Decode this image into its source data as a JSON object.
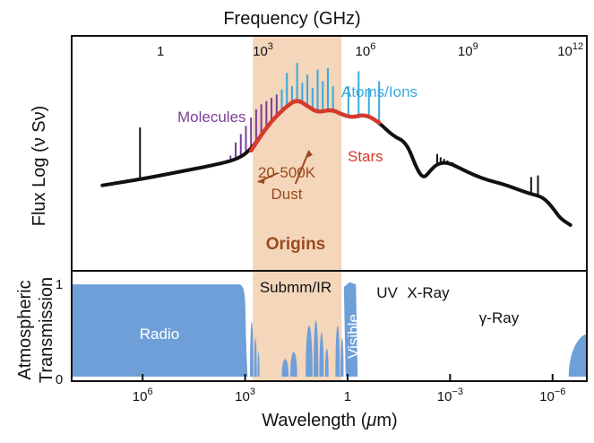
{
  "chart_data": [
    {
      "type": "line",
      "panel": "spectral energy distribution (flux)",
      "x_scale": "log",
      "top_axis": {
        "title": "Frequency (GHz)",
        "ticks": [
          {
            "value": 1,
            "base": "",
            "exp": "1"
          },
          {
            "value": 1000,
            "base": "10",
            "exp": "3"
          },
          {
            "value": 1000000,
            "base": "10",
            "exp": "6"
          },
          {
            "value": 1000000000,
            "base": "10",
            "exp": "9"
          },
          {
            "value": 1000000000000,
            "base": "10",
            "exp": "12"
          }
        ],
        "range_ghz": [
          0.0025,
          3000000000000.0
        ]
      },
      "ylabel": "Flux Log (ν Sν)",
      "yticks": [],
      "series": [
        {
          "color": "#111111",
          "x_log10_ghz": [
            -1.7,
            -0.5,
            0.5,
            1.5,
            2.3,
            2.7,
            3.0,
            3.3,
            3.7,
            4.0,
            4.3,
            4.6,
            5.0,
            5.3,
            5.6,
            6.0,
            6.4,
            6.8,
            7.2,
            7.5,
            7.7,
            7.9,
            8.1,
            8.4,
            8.8,
            9.2,
            9.6,
            10.0,
            10.4,
            10.8,
            11.2,
            11.5,
            11.7,
            12.0
          ],
          "y_log_flux": [
            1.0,
            1.4,
            1.8,
            2.2,
            2.6,
            3.3,
            4.2,
            5.0,
            5.8,
            6.2,
            5.8,
            5.4,
            5.6,
            5.3,
            5.1,
            5.3,
            4.8,
            4.0,
            3.6,
            2.0,
            1.4,
            1.9,
            2.3,
            2.4,
            2.0,
            1.6,
            1.3,
            1.1,
            0.8,
            0.5,
            0.3,
            -0.4,
            -1.0,
            -1.4
          ]
        },
        {
          "name": "Dust",
          "color": "#d63a2b",
          "x_log10_ghz": [
            2.65,
            3.0,
            3.3,
            3.7,
            4.0,
            4.3,
            4.6,
            5.0,
            5.3,
            5.6,
            6.0,
            6.4
          ],
          "y_log_flux": [
            3.1,
            4.2,
            5.0,
            5.8,
            6.2,
            5.8,
            5.4,
            5.6,
            5.3,
            5.1,
            5.3,
            4.8
          ]
        }
      ],
      "line_spectra": [
        {
          "name": "Molecules",
          "color": "#7b3f98",
          "x_log10_ghz": [
            2.05,
            2.2,
            2.35,
            2.5,
            2.65,
            2.8,
            2.95,
            3.1,
            3.25,
            3.4,
            3.55
          ],
          "y_top": [
            2.8,
            3.6,
            4.1,
            4.6,
            5.1,
            5.6,
            5.9,
            6.1,
            6.3,
            6.5,
            6.4
          ]
        },
        {
          "name": "Atoms/Ions",
          "color": "#37a9e1",
          "x_log10_ghz": [
            3.55,
            3.7,
            3.85,
            4.0,
            4.15,
            4.3,
            4.45,
            4.6,
            4.75,
            4.9,
            5.05,
            5.5,
            5.8,
            6.1,
            6.4
          ],
          "y_top": [
            6.8,
            7.8,
            7.0,
            8.4,
            7.2,
            7.7,
            6.9,
            8.0,
            7.3,
            8.1,
            7.0,
            7.0,
            7.9,
            6.9,
            7.3
          ]
        },
        {
          "color": "#111111",
          "x_log10_ghz": [
            -0.6,
            8.1,
            8.2,
            8.3,
            8.4,
            8.55,
            10.85,
            11.05
          ],
          "y_top": [
            4.5,
            2.9,
            2.7,
            2.6,
            2.5,
            2.4,
            1.5,
            1.6
          ]
        }
      ],
      "regions": [
        {
          "label": "Origins",
          "from_log10_ghz": 2.7,
          "to_log10_ghz": 5.3,
          "color": "#f4d6bb",
          "label_color": "#9a4a1e"
        }
      ],
      "annotations": [
        {
          "text": "Molecules",
          "color": "#7b3f98"
        },
        {
          "text": "Atoms/Ions",
          "color": "#37a9e1"
        },
        {
          "text": "Stars",
          "color": "#d63a2b"
        },
        {
          "text": "20-500K",
          "color": "#9a4a1e"
        },
        {
          "text": "Dust",
          "color": "#9a4a1e"
        },
        {
          "text": "Origins",
          "color": "#9a4a1e"
        }
      ]
    },
    {
      "type": "area",
      "panel": "atmospheric transmission",
      "x_scale": "log",
      "xlabel": "Wavelength (μm)",
      "xticks": [
        {
          "value": 1000000,
          "base": "10",
          "exp": "6"
        },
        {
          "value": 1000,
          "base": "10",
          "exp": "3"
        },
        {
          "value": 1,
          "base": "",
          "exp": "1"
        },
        {
          "value": 0.001,
          "base": "10",
          "exp": "−3"
        },
        {
          "value": 1e-06,
          "base": "10",
          "exp": "−6"
        }
      ],
      "ylabel": [
        "Atmospheric",
        "Transmission"
      ],
      "yticks": [
        "1",
        "0"
      ],
      "ylim": [
        0,
        1
      ],
      "series": [
        {
          "name": "transmission",
          "color": "#6f9fd8",
          "x_log10_ghz": [
            -2.5,
            2.3,
            2.5,
            2.6,
            2.85,
            3.3,
            3.7,
            4.1,
            4.5,
            5.1,
            5.4,
            5.55,
            5.7,
            10.6,
            11.0,
            11.3,
            12.0
          ],
          "y": [
            1.0,
            1.0,
            0.97,
            0.0,
            0.0,
            0.0,
            0.0,
            0.0,
            0.0,
            0.0,
            0.0,
            1.0,
            0.0,
            0.0,
            0.0,
            0.2,
            0.45
          ]
        }
      ],
      "band_labels": [
        {
          "text": "Radio",
          "color": "#ffffff"
        },
        {
          "text": "Submm/IR",
          "color": "#111111"
        },
        {
          "text": "Visible",
          "color": "#ffffff"
        },
        {
          "text": "UV",
          "color": "#111111"
        },
        {
          "text": "X-Ray",
          "color": "#111111"
        },
        {
          "text": "γ-Ray",
          "color": "#111111"
        }
      ],
      "regions": [
        {
          "from_log10_ghz": 2.7,
          "to_log10_ghz": 5.3,
          "color": "#f4d6bb"
        }
      ]
    }
  ]
}
